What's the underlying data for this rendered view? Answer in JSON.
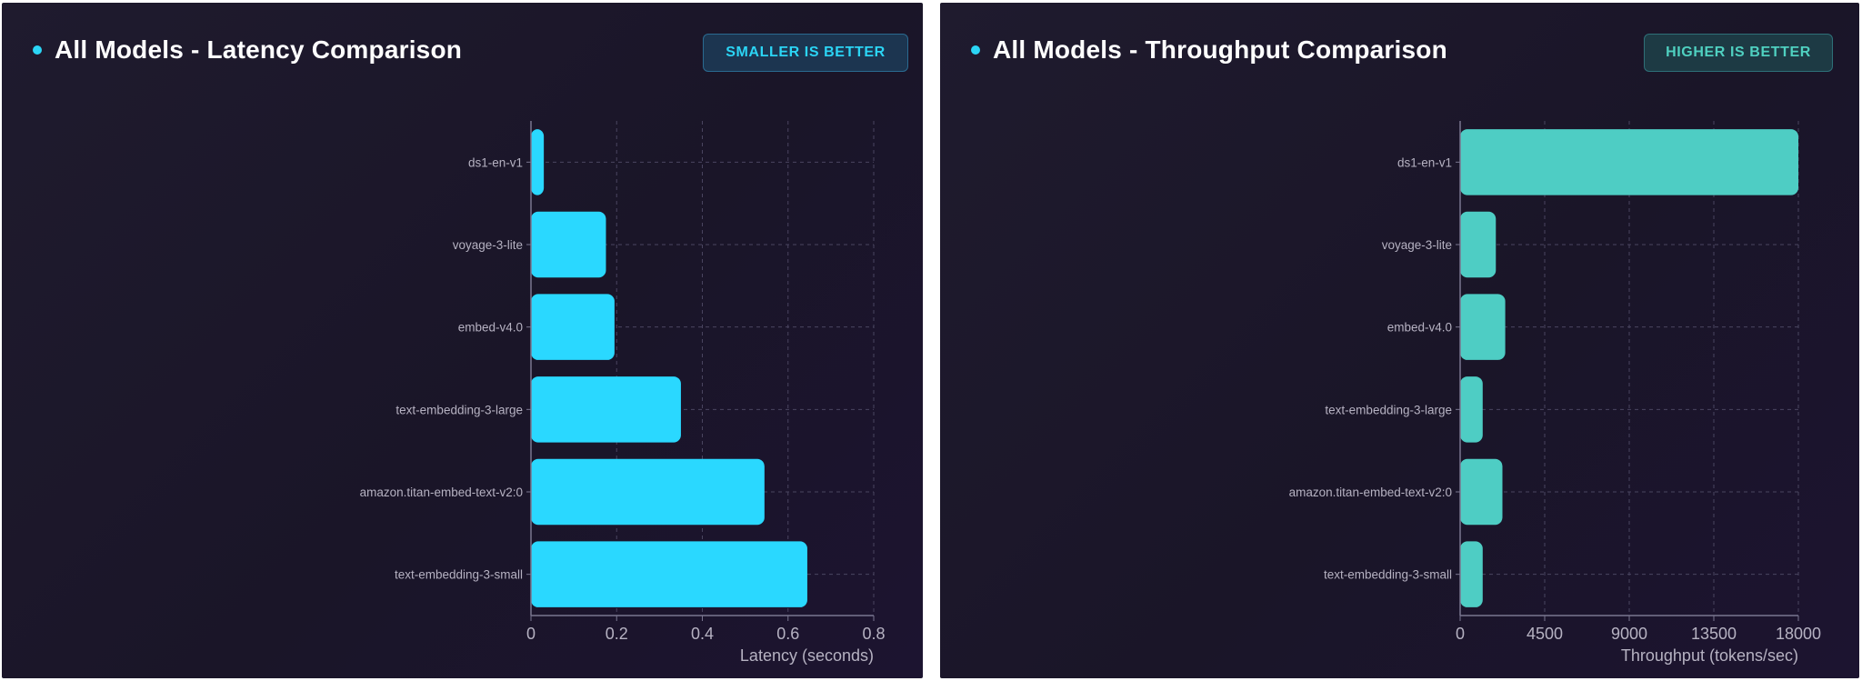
{
  "panels": {
    "latency": {
      "title": "All Models - Latency Comparison",
      "badge": "SMALLER IS BETTER"
    },
    "throughput": {
      "title": "All Models - Throughput Comparison",
      "badge": "HIGHER IS BETTER"
    }
  },
  "colors": {
    "latency_bar": "#2ad8ff",
    "throughput_bar": "#4ecdc4",
    "accent_dot": "#2bd5f5",
    "grid": "#4a4560",
    "axis": "#7a7690"
  },
  "chart_data": [
    {
      "type": "bar",
      "orientation": "horizontal",
      "title": "All Models - Latency Comparison",
      "categories": [
        "ds1-en-v1",
        "voyage-3-lite",
        "embed-v4.0",
        "text-embedding-3-large",
        "amazon.titan-embed-text-v2:0",
        "text-embedding-3-small"
      ],
      "values": [
        0.03,
        0.175,
        0.195,
        0.35,
        0.545,
        0.645
      ],
      "xlabel": "Latency (seconds)",
      "ylabel": "",
      "xlim": [
        0,
        0.8
      ],
      "xticks": [
        "0",
        "0.2",
        "0.4",
        "0.6",
        "0.8"
      ],
      "grid": true
    },
    {
      "type": "bar",
      "orientation": "horizontal",
      "title": "All Models - Throughput Comparison",
      "categories": [
        "ds1-en-v1",
        "voyage-3-lite",
        "embed-v4.0",
        "text-embedding-3-large",
        "amazon.titan-embed-text-v2:0",
        "text-embedding-3-small"
      ],
      "values": [
        18000,
        1900,
        2400,
        1200,
        2250,
        1200
      ],
      "xlabel": "Throughput (tokens/sec)",
      "ylabel": "",
      "xlim": [
        0,
        18000
      ],
      "xticks": [
        "0",
        "4500",
        "9000",
        "13500",
        "18000"
      ],
      "grid": true
    }
  ]
}
